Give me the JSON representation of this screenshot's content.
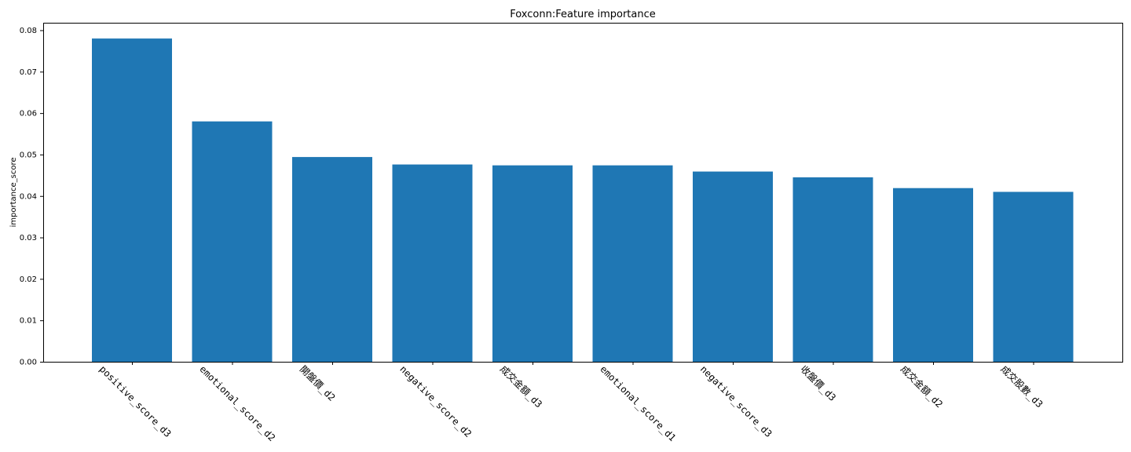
{
  "chart_data": {
    "type": "bar",
    "title": "Foxconn:Feature importance",
    "xlabel": "",
    "ylabel": "importance_score",
    "ylim": [
      0,
      0.0818
    ],
    "yticks": [
      "0.00",
      "0.01",
      "0.02",
      "0.03",
      "0.04",
      "0.05",
      "0.06",
      "0.07",
      "0.08"
    ],
    "categories": [
      "positive_score_d3",
      "emotional_score_d2",
      "開盤價_d2",
      "negative_score_d2",
      "成交金額_d3",
      "emotional_score_d1",
      "negative_score_d3",
      "收盤價_d3",
      "成交金額_d2",
      "成交股數_d3"
    ],
    "values": [
      0.078,
      0.058,
      0.0494,
      0.0476,
      0.0474,
      0.0474,
      0.0459,
      0.0445,
      0.0419,
      0.041
    ],
    "bar_color": "#1f77b4",
    "grid": false,
    "legend": "none"
  }
}
